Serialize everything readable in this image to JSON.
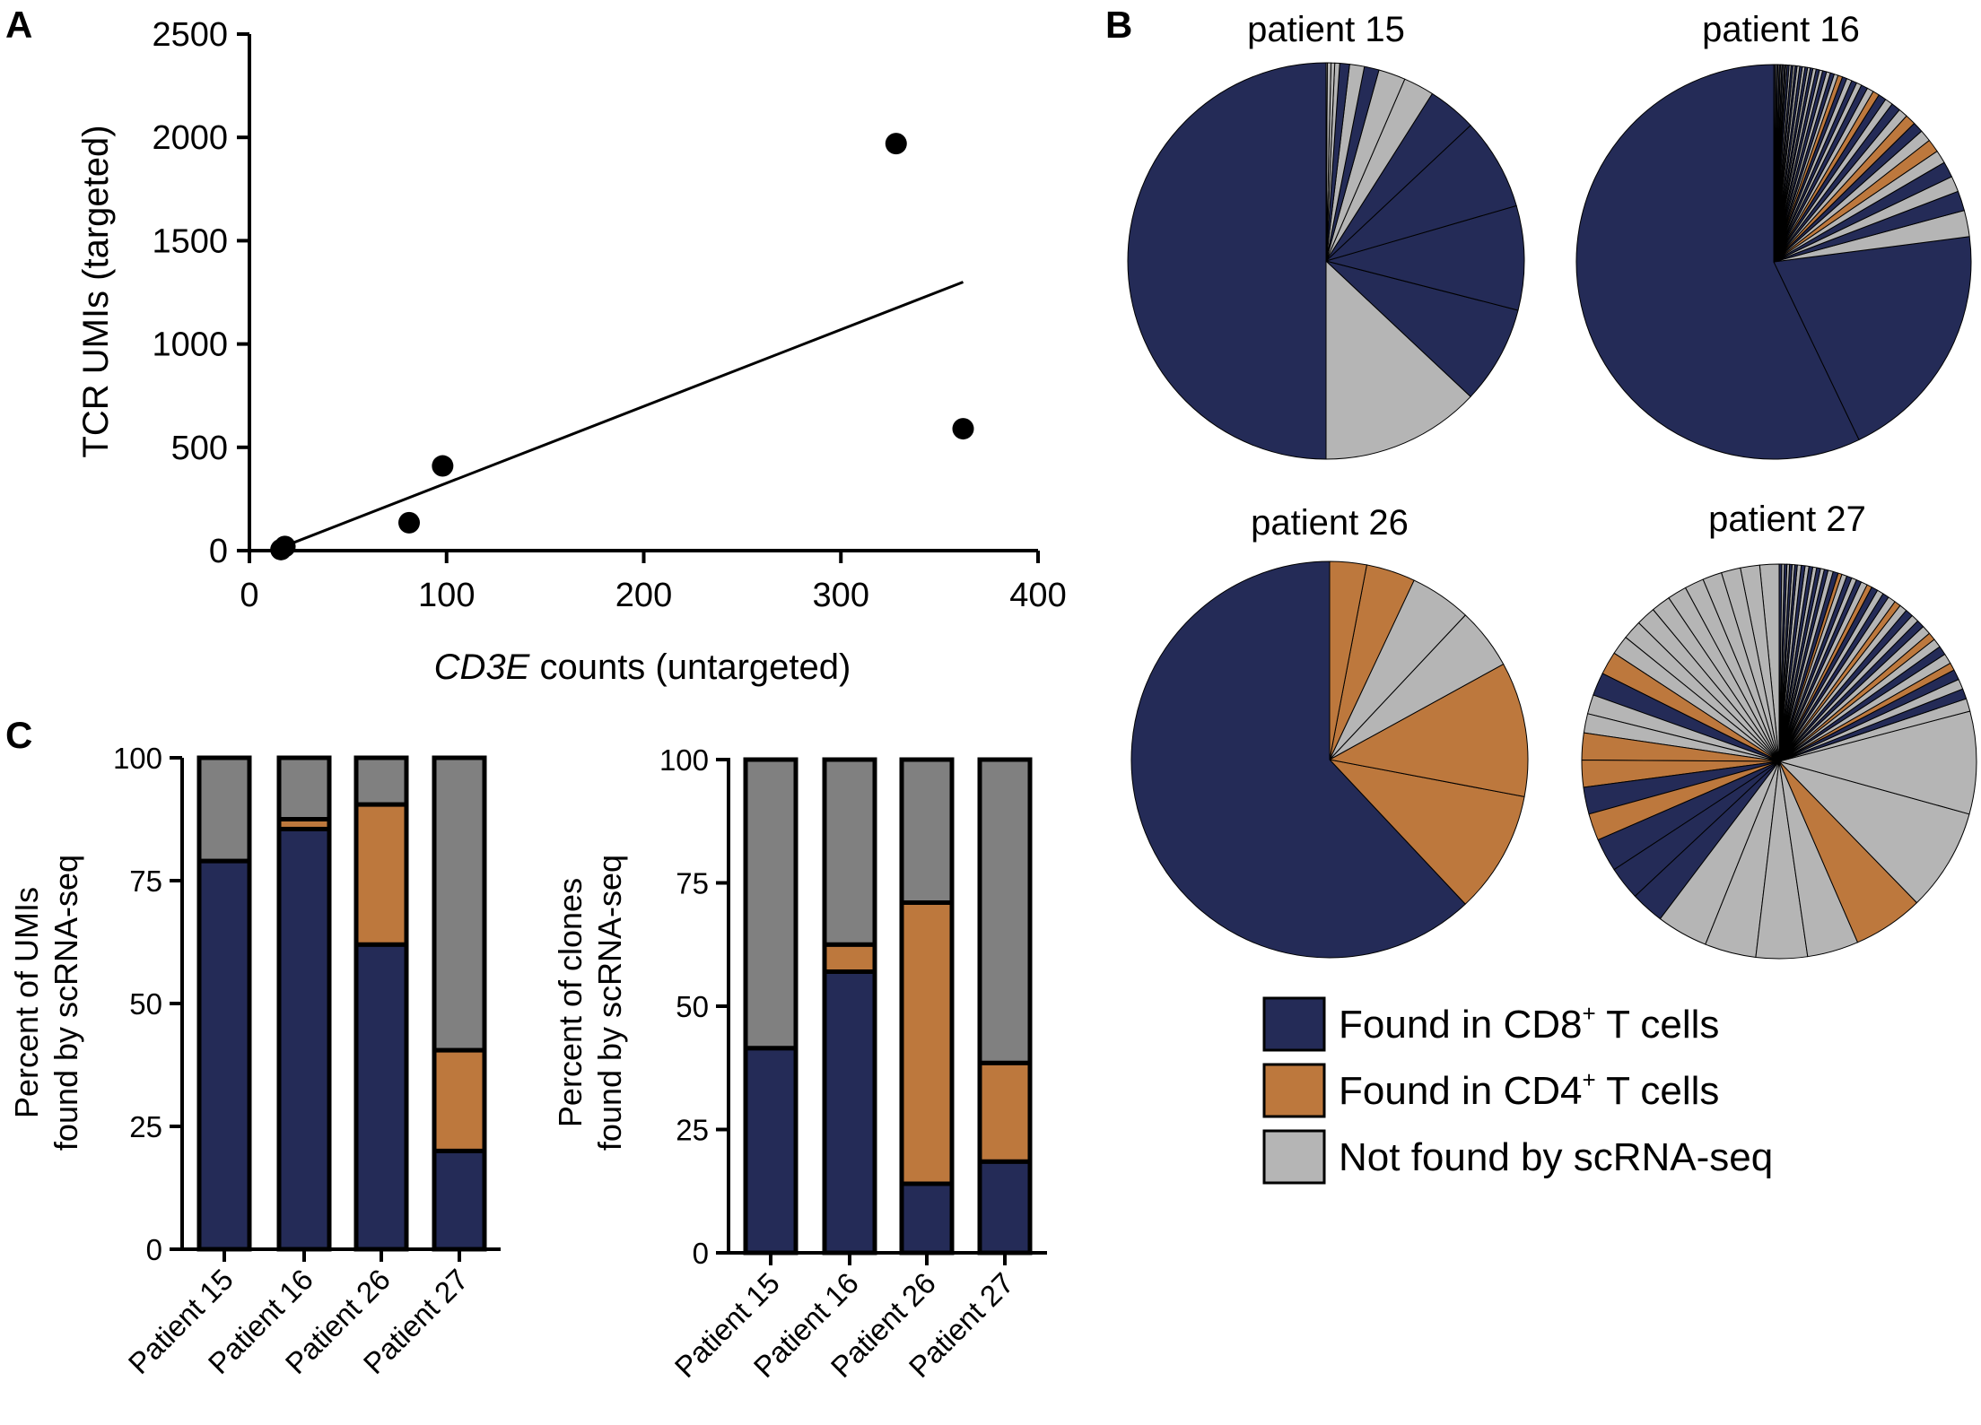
{
  "panels": {
    "A": "A",
    "B": "B",
    "C": "C"
  },
  "colors": {
    "cd8": "#242b57",
    "cd4": "#bd783d",
    "notfound_pie": "#b5b5b5",
    "notfound_bar": "#808080"
  },
  "chart_data": [
    {
      "panel": "A",
      "type": "scatter",
      "xlabel_italic": "CD3E",
      "xlabel_rest": " counts (untargeted)",
      "ylabel": "TCR UMIs (targeted)",
      "xlim": [
        0,
        400
      ],
      "ylim": [
        0,
        2500
      ],
      "xticks": [
        0,
        100,
        200,
        300,
        400
      ],
      "yticks": [
        0,
        500,
        1000,
        1500,
        2000,
        2500
      ],
      "points": [
        {
          "x": 16,
          "y": 5
        },
        {
          "x": 18,
          "y": 20
        },
        {
          "x": 81,
          "y": 135
        },
        {
          "x": 98,
          "y": 410
        },
        {
          "x": 328,
          "y": 1970
        },
        {
          "x": 362,
          "y": 590
        }
      ],
      "fit_line": {
        "x": [
          16,
          362
        ],
        "y": [
          15,
          1300
        ]
      }
    },
    {
      "panel": "B",
      "type": "pie",
      "legend": [
        {
          "key": "cd8",
          "label": "Found in CD8",
          "sup": "+",
          "rest": " T cells"
        },
        {
          "key": "cd4",
          "label": "Found in CD4",
          "sup": "+",
          "rest": " T cells"
        },
        {
          "key": "notfound",
          "label": "Not found by scRNA-seq",
          "sup": "",
          "rest": ""
        }
      ],
      "pies": [
        {
          "title": "patient 15",
          "slices": [
            {
              "c": "cd8",
              "v": 50
            },
            {
              "c": "notfound",
              "v": 13
            },
            {
              "c": "cd8",
              "v": 8
            },
            {
              "c": "cd8",
              "v": 8.5
            },
            {
              "c": "cd8",
              "v": 7.5
            },
            {
              "c": "cd8",
              "v": 4
            },
            {
              "c": "notfound",
              "v": 2.5
            },
            {
              "c": "notfound",
              "v": 2.2
            },
            {
              "c": "cd8",
              "v": 1.2
            },
            {
              "c": "notfound",
              "v": 1.2
            },
            {
              "c": "cd8",
              "v": 0.8
            },
            {
              "c": "notfound",
              "v": 0.4
            },
            {
              "c": "notfound",
              "v": 0.3
            },
            {
              "c": "notfound",
              "v": 0.3
            },
            {
              "c": "notfound",
              "v": 0.1
            }
          ]
        },
        {
          "title": "patient 16",
          "slices": [
            {
              "c": "cd8",
              "v": 53
            },
            {
              "c": "cd8",
              "v": 18.5
            },
            {
              "c": "notfound",
              "v": 2
            },
            {
              "c": "cd8",
              "v": 1.5
            },
            {
              "c": "notfound",
              "v": 1.2
            },
            {
              "c": "cd8",
              "v": 1.2
            },
            {
              "c": "notfound",
              "v": 1
            },
            {
              "c": "cd4",
              "v": 1
            },
            {
              "c": "notfound",
              "v": 0.9
            },
            {
              "c": "cd8",
              "v": 0.8
            },
            {
              "c": "cd4",
              "v": 0.8
            },
            {
              "c": "notfound",
              "v": 0.7
            },
            {
              "c": "cd8",
              "v": 0.7
            },
            {
              "c": "notfound",
              "v": 0.6
            },
            {
              "c": "cd8",
              "v": 0.6
            },
            {
              "c": "cd4",
              "v": 0.5
            },
            {
              "c": "notfound",
              "v": 0.5
            },
            {
              "c": "cd8",
              "v": 0.5
            },
            {
              "c": "notfound",
              "v": 0.4
            },
            {
              "c": "cd8",
              "v": 0.4
            },
            {
              "c": "notfound",
              "v": 0.4
            },
            {
              "c": "cd8",
              "v": 0.35
            },
            {
              "c": "cd4",
              "v": 0.35
            },
            {
              "c": "notfound",
              "v": 0.3
            },
            {
              "c": "cd8",
              "v": 0.3
            },
            {
              "c": "notfound",
              "v": 0.3
            },
            {
              "c": "cd8",
              "v": 0.3
            },
            {
              "c": "notfound",
              "v": 0.25
            },
            {
              "c": "cd8",
              "v": 0.25
            },
            {
              "c": "notfound",
              "v": 0.25
            },
            {
              "c": "cd8",
              "v": 0.2
            },
            {
              "c": "notfound",
              "v": 0.2
            },
            {
              "c": "cd8",
              "v": 0.2
            },
            {
              "c": "notfound",
              "v": 0.2
            },
            {
              "c": "cd8",
              "v": 0.2
            },
            {
              "c": "notfound",
              "v": 0.2
            },
            {
              "c": "cd8",
              "v": 0.15
            },
            {
              "c": "notfound",
              "v": 0.15
            },
            {
              "c": "cd8",
              "v": 0.15
            },
            {
              "c": "notfound",
              "v": 0.15
            },
            {
              "c": "cd8",
              "v": 0.15
            },
            {
              "c": "notfound",
              "v": 0.1
            },
            {
              "c": "cd8",
              "v": 0.1
            },
            {
              "c": "notfound",
              "v": 0.1
            },
            {
              "c": "cd8",
              "v": 0.1
            },
            {
              "c": "notfound",
              "v": 0.1
            },
            {
              "c": "cd8",
              "v": 0.1
            },
            {
              "c": "notfound",
              "v": 0.1
            },
            {
              "c": "cd8",
              "v": 0.1
            },
            {
              "c": "notfound",
              "v": 0.1
            },
            {
              "c": "cd8",
              "v": 0.1
            }
          ]
        },
        {
          "title": "patient 26",
          "slices": [
            {
              "c": "cd8",
              "v": 62
            },
            {
              "c": "cd4",
              "v": 10
            },
            {
              "c": "cd4",
              "v": 11
            },
            {
              "c": "notfound",
              "v": 5
            },
            {
              "c": "notfound",
              "v": 5
            },
            {
              "c": "cd4",
              "v": 4
            },
            {
              "c": "cd4",
              "v": 3
            }
          ]
        },
        {
          "title": "patient 27",
          "slices": [
            {
              "c": "notfound",
              "v": 1.5
            },
            {
              "c": "notfound",
              "v": 1.5
            },
            {
              "c": "notfound",
              "v": 1.5
            },
            {
              "c": "notfound",
              "v": 1.5
            },
            {
              "c": "notfound",
              "v": 1.5
            },
            {
              "c": "notfound",
              "v": 1.5
            },
            {
              "c": "notfound",
              "v": 1.5
            },
            {
              "c": "notfound",
              "v": 1.5
            },
            {
              "c": "notfound",
              "v": 1.5
            },
            {
              "c": "notfound",
              "v": 1.5
            },
            {
              "c": "cd4",
              "v": 1.8
            },
            {
              "c": "cd8",
              "v": 1.8
            },
            {
              "c": "notfound",
              "v": 1.5
            },
            {
              "c": "notfound",
              "v": 1.5
            },
            {
              "c": "cd4",
              "v": 2.1
            },
            {
              "c": "cd4",
              "v": 2.1
            },
            {
              "c": "cd8",
              "v": 2.1
            },
            {
              "c": "cd4",
              "v": 2.1
            },
            {
              "c": "cd8",
              "v": 2.6
            },
            {
              "c": "cd8",
              "v": 2.6
            },
            {
              "c": "cd8",
              "v": 2.6
            },
            {
              "c": "notfound",
              "v": 4
            },
            {
              "c": "notfound",
              "v": 4
            },
            {
              "c": "notfound",
              "v": 4
            },
            {
              "c": "notfound",
              "v": 4
            },
            {
              "c": "cd4",
              "v": 5.5
            },
            {
              "c": "notfound",
              "v": 8
            },
            {
              "c": "notfound",
              "v": 8
            },
            {
              "c": "notfound",
              "v": 1
            },
            {
              "c": "cd8",
              "v": 0.8
            },
            {
              "c": "notfound",
              "v": 0.8
            },
            {
              "c": "cd8",
              "v": 0.8
            },
            {
              "c": "cd4",
              "v": 0.6
            },
            {
              "c": "notfound",
              "v": 0.8
            },
            {
              "c": "cd8",
              "v": 0.7
            },
            {
              "c": "notfound",
              "v": 0.7
            },
            {
              "c": "cd4",
              "v": 0.6
            },
            {
              "c": "notfound",
              "v": 0.7
            },
            {
              "c": "cd8",
              "v": 0.6
            },
            {
              "c": "notfound",
              "v": 0.6
            },
            {
              "c": "cd8",
              "v": 0.6
            },
            {
              "c": "notfound",
              "v": 0.6
            },
            {
              "c": "cd4",
              "v": 0.5
            },
            {
              "c": "notfound",
              "v": 0.6
            },
            {
              "c": "cd8",
              "v": 0.5
            },
            {
              "c": "notfound",
              "v": 0.5
            },
            {
              "c": "cd8",
              "v": 0.5
            },
            {
              "c": "cd4",
              "v": 0.4
            },
            {
              "c": "notfound",
              "v": 0.5
            },
            {
              "c": "cd8",
              "v": 0.4
            },
            {
              "c": "notfound",
              "v": 0.4
            },
            {
              "c": "cd8",
              "v": 0.4
            },
            {
              "c": "notfound",
              "v": 0.4
            },
            {
              "c": "cd4",
              "v": 0.3
            },
            {
              "c": "cd8",
              "v": 0.4
            },
            {
              "c": "notfound",
              "v": 0.4
            },
            {
              "c": "cd8",
              "v": 0.3
            },
            {
              "c": "notfound",
              "v": 0.3
            },
            {
              "c": "cd8",
              "v": 0.3
            },
            {
              "c": "notfound",
              "v": 0.3
            },
            {
              "c": "cd8",
              "v": 0.3
            },
            {
              "c": "notfound",
              "v": 0.3
            },
            {
              "c": "cd8",
              "v": 0.3
            },
            {
              "c": "notfound",
              "v": 0.3
            },
            {
              "c": "cd8",
              "v": 0.2
            },
            {
              "c": "notfound",
              "v": 0.2
            },
            {
              "c": "cd8",
              "v": 0.2
            },
            {
              "c": "notfound",
              "v": 0.2
            },
            {
              "c": "cd8",
              "v": 0.2
            },
            {
              "c": "notfound",
              "v": 0.2
            },
            {
              "c": "cd8",
              "v": 0.2
            }
          ]
        }
      ]
    },
    {
      "panel": "C-left",
      "type": "bar",
      "stacked": true,
      "ylabel_lines": [
        "Percent of UMIs",
        "found by scRNA-seq"
      ],
      "ylim": [
        0,
        100
      ],
      "yticks": [
        0,
        25,
        50,
        75,
        100
      ],
      "categories": [
        "Patient 15",
        "Patient 16",
        "Patient 26",
        "Patient 27"
      ],
      "series": [
        {
          "name": "Found in CD8+ T cells",
          "key": "cd8",
          "values": [
            79,
            85.5,
            62,
            20
          ]
        },
        {
          "name": "Found in CD4+ T cells",
          "key": "cd4",
          "values": [
            0,
            2,
            28.5,
            20.5
          ]
        },
        {
          "name": "Not found by scRNA-seq",
          "key": "notfound",
          "values": [
            21,
            12.5,
            9.5,
            59.5
          ]
        }
      ]
    },
    {
      "panel": "C-right",
      "type": "bar",
      "stacked": true,
      "ylabel_lines": [
        "Percent of clones",
        "found by scRNA-seq"
      ],
      "ylim": [
        0,
        100
      ],
      "yticks": [
        0,
        25,
        50,
        75,
        100
      ],
      "categories": [
        "Patient 15",
        "Patient 16",
        "Patient 26",
        "Patient 27"
      ],
      "series": [
        {
          "name": "Found in CD8+ T cells",
          "key": "cd8",
          "values": [
            41.5,
            57,
            14,
            18.5
          ]
        },
        {
          "name": "Found in CD4+ T cells",
          "key": "cd4",
          "values": [
            0,
            5.5,
            57,
            20
          ]
        },
        {
          "name": "Not found by scRNA-seq",
          "key": "notfound",
          "values": [
            58.5,
            37.5,
            29,
            61.5
          ]
        }
      ]
    }
  ]
}
